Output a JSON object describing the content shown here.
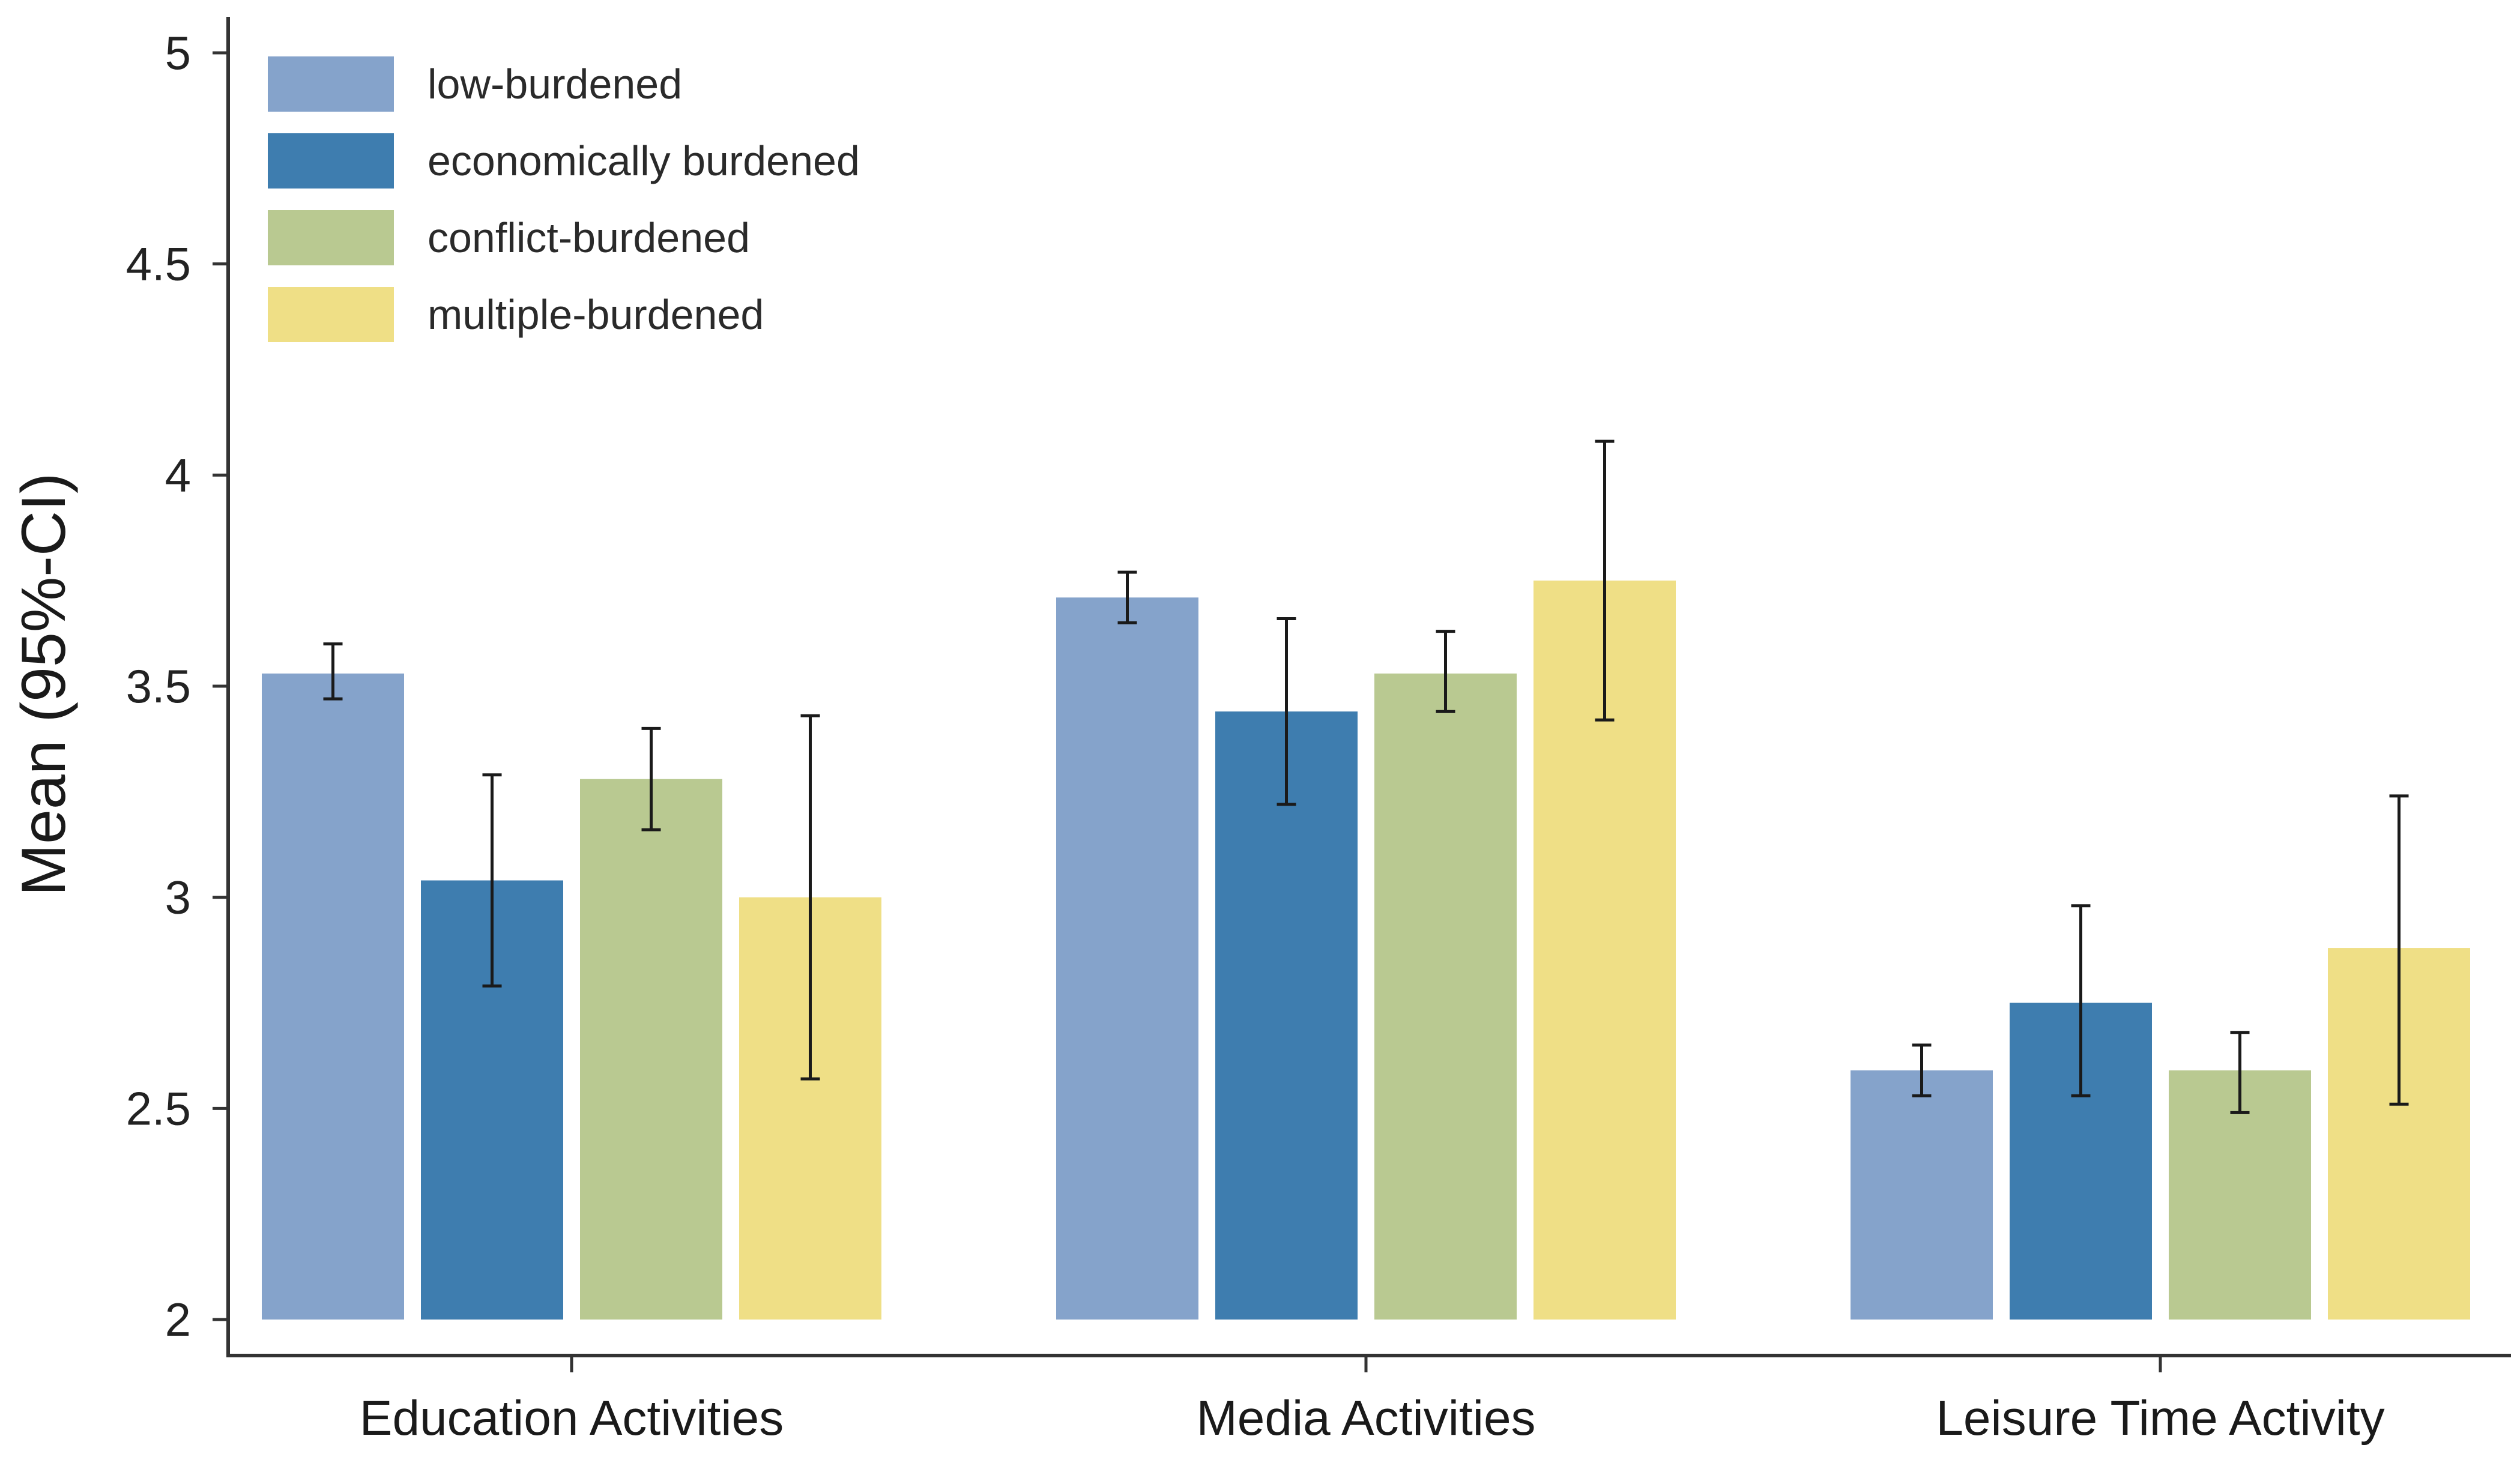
{
  "chart_data": {
    "type": "bar",
    "title": "",
    "xlabel": "",
    "ylabel": "Mean (95%-CI)",
    "ylim": [
      2,
      5
    ],
    "yticks": [
      2,
      2.5,
      3,
      3.5,
      4,
      4.5,
      5
    ],
    "ytick_labels": [
      "2",
      "2.5",
      "3",
      "3.5",
      "4",
      "4.5",
      "5"
    ],
    "grid": false,
    "legend_position": "top-left",
    "categories": [
      "Education Activities",
      "Media Activities",
      "Leisure Time Activity"
    ],
    "series": [
      {
        "name": "low-burdened",
        "color": "#85a3cb",
        "values": [
          3.53,
          3.71,
          2.59
        ],
        "ci_low": [
          3.47,
          3.65,
          2.53
        ],
        "ci_high": [
          3.6,
          3.77,
          2.65
        ]
      },
      {
        "name": "economically burdened",
        "color": "#3e7daf",
        "values": [
          3.04,
          3.44,
          2.75
        ],
        "ci_low": [
          2.79,
          3.22,
          2.53
        ],
        "ci_high": [
          3.29,
          3.66,
          2.98
        ]
      },
      {
        "name": "conflict-burdened",
        "color": "#b9c991",
        "values": [
          3.28,
          3.53,
          2.59
        ],
        "ci_low": [
          3.16,
          3.44,
          2.49
        ],
        "ci_high": [
          3.4,
          3.63,
          2.68
        ]
      },
      {
        "name": "multiple-burdened",
        "color": "#efdf86",
        "values": [
          3.0,
          3.75,
          2.88
        ],
        "ci_low": [
          2.57,
          3.42,
          2.51
        ],
        "ci_high": [
          3.43,
          4.08,
          3.24
        ]
      }
    ]
  }
}
